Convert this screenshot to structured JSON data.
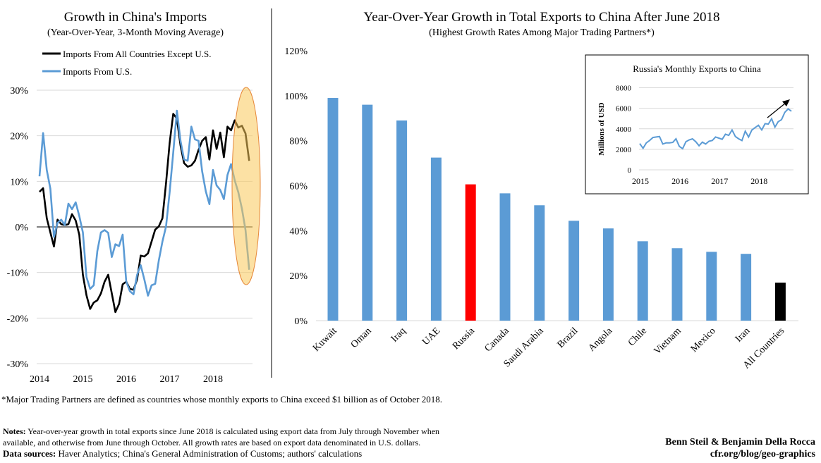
{
  "chart_data": [
    {
      "type": "line",
      "title": "Growth in China's Imports",
      "subtitle": "(Year-Over-Year, 3-Month Moving Average)",
      "x_start": "2014-01",
      "frequency": "monthly",
      "x_ticks": [
        "2014",
        "2015",
        "2016",
        "2017",
        "2018"
      ],
      "y_ticks": [
        "30%",
        "20%",
        "10%",
        "0%",
        "-10%",
        "-20%",
        "-30%"
      ],
      "ylim": [
        -30,
        30
      ],
      "grid": true,
      "legend_position": "top-left",
      "highlight": "ellipse around latest months (mid-2018 onward)",
      "series": [
        {
          "name": "Imports From All Countries Except U.S.",
          "color": "#000000",
          "values": [
            7.7,
            8.5,
            1.9,
            -1.2,
            -4.3,
            1.6,
            0.6,
            0.4,
            0.6,
            2.8,
            1.4,
            -1.7,
            -10.5,
            -15,
            -18,
            -16.6,
            -16.1,
            -14.6,
            -12,
            -10.5,
            -14.6,
            -18.7,
            -16.9,
            -12.6,
            -12,
            -13.6,
            -13.8,
            -11.5,
            -6.3,
            -6.5,
            -5.8,
            -3.2,
            -0.6,
            0.1,
            1.9,
            9.6,
            18.4,
            24.8,
            23.8,
            17.9,
            14,
            13.2,
            13.5,
            14.5,
            16.9,
            18.9,
            19.7,
            14.8,
            21.2,
            17.1,
            20.7,
            15.3,
            22,
            21.2,
            23.4,
            21.8,
            22.2,
            20.5,
            14.5
          ]
        },
        {
          "name": "Imports From U.S.",
          "color": "#5b9bd5",
          "values": [
            11.1,
            20.6,
            12.5,
            8.4,
            -2.2,
            0.9,
            1.6,
            0.4,
            5.1,
            3.9,
            5.4,
            2.4,
            -1.2,
            -11,
            -13.6,
            -12.8,
            -5.3,
            -1.2,
            -0.7,
            -1.3,
            -6.6,
            -3.8,
            -4.2,
            -1.7,
            -12,
            -14.1,
            -14.8,
            -10.5,
            -8.4,
            -11.5,
            -15.1,
            -12.8,
            -12.5,
            -7.4,
            -3.2,
            0.1,
            7.6,
            16.3,
            25.5,
            18.9,
            14.8,
            14.5,
            22,
            19.2,
            18.9,
            12.2,
            7.8,
            5,
            12.5,
            9.1,
            8.1,
            6.1,
            11.4,
            13.8,
            10.2,
            7.6,
            4,
            -0.7,
            -9.4
          ]
        }
      ]
    },
    {
      "type": "bar",
      "title": "Year-Over-Year Growth in Total Exports to China After June 2018",
      "subtitle": "(Highest Growth Rates Among Major Trading Partners*)",
      "categories": [
        "Kuwait",
        "Oman",
        "Iraq",
        "UAE",
        "Russia",
        "Canada",
        "Saudi Arabia",
        "Brazil",
        "Angola",
        "Chile",
        "Vietnam",
        "Mexico",
        "Iran",
        "All Countries"
      ],
      "values": [
        99,
        96,
        89,
        72.5,
        60.6,
        56.6,
        51.3,
        44.4,
        41,
        35.3,
        32.2,
        30.6,
        29.7,
        16.9
      ],
      "colors": [
        "#5b9bd5",
        "#5b9bd5",
        "#5b9bd5",
        "#5b9bd5",
        "#ff0000",
        "#5b9bd5",
        "#5b9bd5",
        "#5b9bd5",
        "#5b9bd5",
        "#5b9bd5",
        "#5b9bd5",
        "#5b9bd5",
        "#5b9bd5",
        "#000000"
      ],
      "y_ticks": [
        "0%",
        "20%",
        "40%",
        "60%",
        "80%",
        "100%",
        "120%"
      ],
      "ylim": [
        0,
        120
      ],
      "grid": false
    },
    {
      "type": "line",
      "title": "Russia's Monthly Exports to China",
      "ylabel": "Millions of USD",
      "x_start": "2015-01",
      "frequency": "monthly",
      "x_ticks": [
        "2015",
        "2016",
        "2017",
        "2018"
      ],
      "y_ticks": [
        "0",
        "2000",
        "4000",
        "6000",
        "8000"
      ],
      "ylim": [
        0,
        8000
      ],
      "grid": true,
      "annotation": "upward arrow",
      "series": [
        {
          "color": "#5b9bd5",
          "values": [
            2560,
            2100,
            2630,
            2860,
            3150,
            3200,
            3250,
            2510,
            2630,
            2630,
            2670,
            3020,
            2290,
            2060,
            2740,
            2920,
            3020,
            2740,
            2350,
            2700,
            2510,
            2790,
            2860,
            3200,
            3090,
            2970,
            3470,
            3360,
            3890,
            3250,
            3020,
            2860,
            3770,
            3200,
            3890,
            4110,
            4340,
            3890,
            4500,
            4460,
            4980,
            4160,
            4690,
            4890,
            5600,
            5940,
            5710
          ]
        }
      ]
    }
  ],
  "footnote": "*Major Trading Partners are defined as countries whose monthly exports to China exceed $1 billion as of October 2018.",
  "notes_label": "Notes:",
  "notes_line1": "Year-over-year growth in total exports since June 2018 is calculated using export data from July  through November when",
  "notes_line2": "available, and otherwise from June through October. All growth rates are based on export data denominated in U.S. dollars.",
  "sources_label": "Data sources:",
  "sources_text": "Haver Analytics; China's General Administration of Customs; authors' calculations",
  "authors": "Benn Steil & Benjamin Della Rocca",
  "site": "cfr.org/blog/geo-graphics"
}
